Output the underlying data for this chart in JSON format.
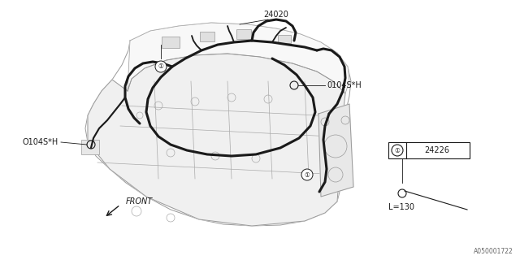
{
  "bg_color": "#ffffff",
  "line_color": "#1a1a1a",
  "gray_color": "#888888",
  "light_gray": "#aaaaaa",
  "lw_thin": 0.5,
  "lw_body": 0.7,
  "lw_harness": 2.2,
  "part_24020": "24020",
  "part_24226": "24226",
  "label_left": "O104S*H",
  "label_right": "0104S*H",
  "label_front": "FRONT",
  "label_L130": "L=130",
  "watermark": "A050001722",
  "fig_width": 6.4,
  "fig_height": 3.2,
  "dpi": 100,
  "body_color": "#ffffff",
  "body_edge": "#999999"
}
